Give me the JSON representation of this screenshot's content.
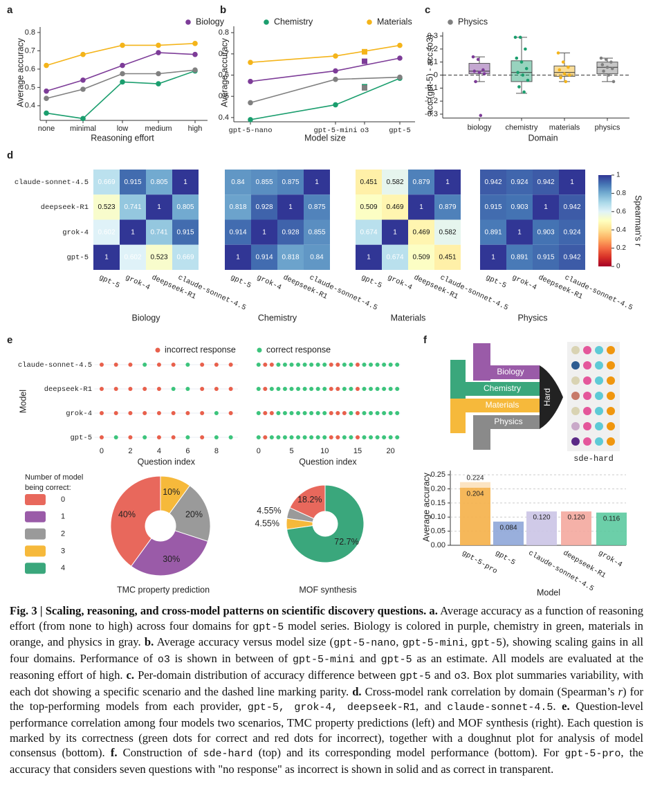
{
  "panel_labels": [
    "a",
    "b",
    "c",
    "d",
    "e",
    "f"
  ],
  "chart_data": [
    {
      "type": "line",
      "categories": [
        "none",
        "minimal",
        "low",
        "medium",
        "high"
      ],
      "series": [
        {
          "name": "Biology",
          "color": "#7d3c98",
          "values": [
            0.48,
            0.54,
            0.62,
            0.69,
            0.68
          ]
        },
        {
          "name": "Chemistry",
          "color": "#1b9e6e",
          "values": [
            0.36,
            0.33,
            0.53,
            0.52,
            0.59
          ]
        },
        {
          "name": "Materials",
          "color": "#f4b41a",
          "values": [
            0.62,
            0.68,
            0.73,
            0.73,
            0.74
          ]
        },
        {
          "name": "Physics",
          "color": "#808080",
          "values": [
            0.44,
            0.49,
            0.575,
            0.575,
            0.595
          ]
        }
      ],
      "ylim": [
        0.32,
        0.83
      ],
      "yticks": [
        0.4,
        0.5,
        0.6,
        0.7,
        0.8
      ],
      "xlabel": "Reasoning effort",
      "ylabel": "Average accuracy"
    },
    {
      "type": "line",
      "categories": [
        "gpt-5-nano",
        "gpt-5-mini",
        "o3",
        "gpt-5"
      ],
      "markers": [
        "circle",
        "circle",
        "square",
        "circle"
      ],
      "series": [
        {
          "color": "#7d3c98",
          "values": [
            0.57,
            0.62,
            0.665,
            0.68
          ]
        },
        {
          "color": "#1b9e6e",
          "values": [
            0.39,
            0.46,
            0.545,
            0.585
          ]
        },
        {
          "color": "#f4b41a",
          "values": [
            0.66,
            0.69,
            0.71,
            0.74
          ]
        },
        {
          "color": "#808080",
          "values": [
            0.47,
            0.58,
            0.54,
            0.59
          ]
        }
      ],
      "ylim": [
        0.38,
        0.83
      ],
      "yticks": [
        0.4,
        0.5,
        0.6,
        0.7,
        0.8
      ],
      "xlabel": "Model size",
      "ylabel": "Average accuracy"
    },
    {
      "type": "box",
      "categories": [
        "biology",
        "chemistry",
        "materials",
        "physics"
      ],
      "colors": [
        "#7d3c98",
        "#1b9e6e",
        "#f4b41a",
        "#808080"
      ],
      "q1": [
        0.01,
        -0.05,
        -0.01,
        0.01
      ],
      "median": [
        0.03,
        0.02,
        0.02,
        0.06
      ],
      "q3": [
        0.09,
        0.11,
        0.07,
        0.1
      ],
      "low": [
        -0.05,
        -0.14,
        -0.05,
        -0.05
      ],
      "high": [
        0.14,
        0.29,
        0.17,
        0.13
      ],
      "points": [
        [
          0.14,
          0.12,
          0.04,
          0.03,
          0.02,
          0.01,
          -0.05,
          -0.31
        ],
        [
          0.29,
          0.29,
          0.2,
          0.13,
          0.1,
          0.05,
          0.02,
          0.0,
          -0.04,
          -0.09,
          -0.13
        ],
        [
          0.17,
          0.1,
          0.06,
          0.04,
          0.01,
          0.0,
          -0.02,
          -0.05
        ],
        [
          0.13,
          0.12,
          0.1,
          0.08,
          0.06,
          0.05,
          0.03,
          0.0,
          -0.05
        ]
      ],
      "parity": 0,
      "ylim": [
        -0.33,
        0.33
      ],
      "yticks": [
        -0.3,
        -0.2,
        -0.1,
        0,
        0.1,
        0.2,
        0.3
      ],
      "xlabel": "Domain",
      "ylabel": "acc.(gpt-5) - acc.(o3)"
    },
    {
      "type": "heatmap",
      "rows": [
        "claude-sonnet-4.5",
        "deepseek-R1",
        "grok-4",
        "gpt-5"
      ],
      "columns": [
        "gpt-5",
        "grok-4",
        "deepseek-R1",
        "claude-sonnet-4.5"
      ],
      "panels": [
        {
          "title": "Biology",
          "values": [
            [
              0.669,
              0.915,
              0.805,
              1
            ],
            [
              0.523,
              0.741,
              1,
              0.805
            ],
            [
              0.602,
              1,
              0.741,
              0.915
            ],
            [
              1,
              0.602,
              0.523,
              0.669
            ]
          ]
        },
        {
          "title": "Chemistry",
          "values": [
            [
              0.84,
              0.855,
              0.875,
              1
            ],
            [
              0.818,
              0.928,
              1,
              0.875
            ],
            [
              0.914,
              1,
              0.928,
              0.855
            ],
            [
              1,
              0.914,
              0.818,
              0.84
            ]
          ]
        },
        {
          "title": "Materials",
          "values": [
            [
              0.451,
              0.582,
              0.879,
              1
            ],
            [
              0.509,
              0.469,
              1,
              0.879
            ],
            [
              0.674,
              1,
              0.469,
              0.582
            ],
            [
              1,
              0.674,
              0.509,
              0.451
            ]
          ]
        },
        {
          "title": "Physics",
          "values": [
            [
              0.942,
              0.924,
              0.942,
              1
            ],
            [
              0.915,
              0.903,
              1,
              0.942
            ],
            [
              0.891,
              1,
              0.903,
              0.924
            ],
            [
              1,
              0.891,
              0.915,
              0.942
            ]
          ]
        }
      ],
      "colorbar": {
        "label": "Spearman's r",
        "lim": [
          0,
          1
        ],
        "ticks": [
          0,
          0.2,
          0.4,
          0.6,
          0.8,
          1
        ],
        "colormap": "RdYlBu"
      }
    },
    {
      "type": "dots",
      "models": [
        "claude-sonnet-4.5",
        "deepseek-R1",
        "grok-4",
        "gpt-5"
      ],
      "legend": [
        {
          "name": "incorrect response",
          "color": "#e8604c"
        },
        {
          "name": "correct response",
          "color": "#3cc47c"
        }
      ],
      "ylabel": "Model",
      "panels": [
        {
          "xlim": [
            -0.5,
            9.5
          ],
          "xticks": [
            0,
            2,
            4,
            6,
            8
          ],
          "xlabel": "Question index",
          "values": [
            [
              0,
              0,
              0,
              1,
              0,
              0,
              1,
              0,
              0,
              0
            ],
            [
              0,
              0,
              0,
              0,
              0,
              1,
              1,
              0,
              0,
              0
            ],
            [
              0,
              0,
              0,
              0,
              0,
              0,
              0,
              0,
              1,
              0
            ],
            [
              0,
              1,
              0,
              1,
              0,
              0,
              1,
              0,
              1,
              1
            ]
          ]
        },
        {
          "xlim": [
            -0.5,
            21.5
          ],
          "xticks": [
            0,
            5,
            10,
            15,
            20
          ],
          "xlabel": "Question index",
          "values": [
            [
              1,
              0,
              0,
              1,
              1,
              1,
              1,
              1,
              1,
              1,
              1,
              0,
              0,
              1,
              1,
              0,
              1,
              1,
              1,
              1,
              1,
              1
            ],
            [
              1,
              0,
              1,
              1,
              1,
              1,
              1,
              1,
              1,
              1,
              1,
              0,
              0,
              1,
              1,
              0,
              1,
              1,
              1,
              1,
              1,
              1
            ],
            [
              1,
              0,
              0,
              1,
              1,
              1,
              1,
              1,
              1,
              1,
              1,
              0,
              0,
              0,
              1,
              0,
              1,
              1,
              1,
              1,
              1,
              1
            ],
            [
              1,
              0,
              1,
              1,
              1,
              1,
              1,
              1,
              1,
              1,
              1,
              0,
              0,
              1,
              1,
              0,
              1,
              1,
              1,
              1,
              1,
              1
            ]
          ]
        }
      ]
    },
    {
      "type": "pie",
      "legend_title": [
        "Number of model",
        "being correct:"
      ],
      "categories": [
        "0",
        "1",
        "2",
        "3",
        "4"
      ],
      "colors": [
        "#e8685c",
        "#9a5ba8",
        "#9a9a9a",
        "#f6b93b",
        "#3aa77c"
      ],
      "pies": [
        {
          "title": "TMC property prediction",
          "values": [
            40,
            30,
            20,
            10,
            0
          ],
          "value_labels": [
            "40%",
            "30%",
            "20%",
            "10%",
            null
          ]
        },
        {
          "title": "MOF synthesis",
          "values": [
            18.2,
            0,
            4.55,
            4.55,
            72.7
          ],
          "value_labels": [
            "18.2%",
            null,
            "4.55%",
            "4.55%",
            "72.7%"
          ]
        }
      ]
    },
    {
      "type": "bar",
      "categories": [
        "gpt-5-pro",
        "gpt-5",
        "claude-sonnet-4.5",
        "deepseek-R1",
        "grok-4"
      ],
      "colors": [
        "#f5b34f",
        "#8ea6d8",
        "#cbc4e6",
        "#f4a99f",
        "#5ccaa0"
      ],
      "values": [
        0.204,
        0.084,
        0.12,
        0.12,
        0.116
      ],
      "value_labels": [
        "0.204",
        "0.084",
        "0.120",
        "0.120",
        "0.116"
      ],
      "upper_values": [
        0.224,
        null,
        null,
        null,
        null
      ],
      "ylim": [
        0,
        0.265
      ],
      "yticks": [
        {
          "value": 0,
          "label": "0.00"
        },
        0.05,
        {
          "value": 0.1,
          "label": "0.10"
        },
        0.15,
        {
          "value": 0.2,
          "label": "0.20"
        },
        0.25
      ],
      "grid": true,
      "xlabel": "Model",
      "ylabel": "Average accuracy"
    }
  ],
  "diagram": {
    "domains": [
      "Biology",
      "Chemistry",
      "Materials",
      "Physics"
    ],
    "arrow_label": "Hard",
    "output": "sde-hard"
  },
  "caption": [
    [
      "b",
      "Fig. 3 | Scaling, reasoning, and cross-model patterns on scientific discovery questions."
    ],
    [
      "b",
      " a."
    ],
    [
      "",
      " Average accuracy as a function of reasoning effort (from none to high) across four domains for "
    ],
    [
      "m",
      "gpt-5"
    ],
    [
      "",
      " model series. Biology is colored in purple, chemistry in green, materials in orange, and physics in gray. "
    ],
    [
      "b",
      "b."
    ],
    [
      "",
      " Average accuracy versus model size ("
    ],
    [
      "m",
      "gpt-5-nano"
    ],
    [
      "",
      ", "
    ],
    [
      "m",
      "gpt-5-mini"
    ],
    [
      "",
      ", "
    ],
    [
      "m",
      "gpt-5"
    ],
    [
      "",
      "), showing scaling gains in all four domains. Performance of "
    ],
    [
      "m",
      "o3"
    ],
    [
      "",
      " is shown in between of "
    ],
    [
      "m",
      "gpt-5-mini"
    ],
    [
      "",
      " and "
    ],
    [
      "m",
      "gpt-5"
    ],
    [
      "",
      " as an estimate. All models are evaluated at the reasoning effort of high. "
    ],
    [
      "b",
      "c."
    ],
    [
      "",
      " Per-domain distribution of accuracy difference between "
    ],
    [
      "m",
      "gpt-5"
    ],
    [
      "",
      " and "
    ],
    [
      "m",
      "o3"
    ],
    [
      "",
      ". Box plot summaries variability, with each dot showing a specific scenario and the dashed line marking parity. "
    ],
    [
      "b",
      "d."
    ],
    [
      "",
      " Cross-model rank correlation by domain (Spearman’s "
    ],
    [
      "i",
      "r"
    ],
    [
      "",
      ") for the top-performing models from each provider, "
    ],
    [
      "m",
      "gpt-5, grok-4, deepseek-R1"
    ],
    [
      "",
      ", and "
    ],
    [
      "m",
      "claude-sonnet-4.5"
    ],
    [
      "",
      ". "
    ],
    [
      "b",
      "e."
    ],
    [
      "",
      " Question-level performance correlation among four models two scenarios, TMC property predictions (left) and MOF synthesis (right). Each question is marked by its correctness (green dots for correct and red dots for incorrect), together with a doughnut plot for analysis of model consensus (bottom). "
    ],
    [
      "b",
      "f."
    ],
    [
      "",
      " Construction of "
    ],
    [
      "m",
      "sde-hard"
    ],
    [
      "",
      " (top) and its corresponding model performance (bottom). For "
    ],
    [
      "m",
      "gpt-5-pro"
    ],
    [
      "",
      ", the accuracy that considers seven questions with \"no response\" as incorrect is shown in solid and as correct in transparent."
    ]
  ]
}
